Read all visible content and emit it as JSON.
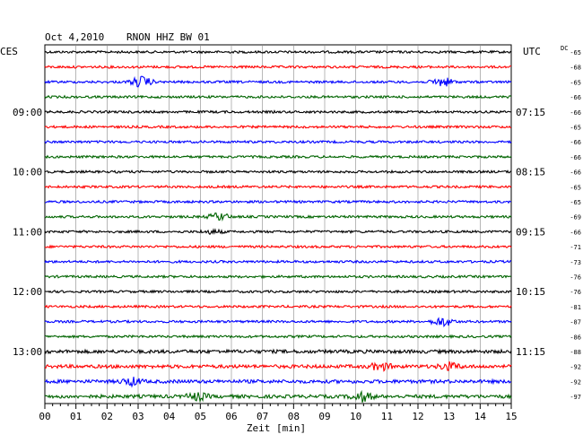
{
  "header": {
    "date": "Oct 4,2010",
    "station": "RNON HHZ BW 01",
    "left_tz": "CES",
    "right_tz": "UTC",
    "dc_label": "DC"
  },
  "chart_data": {
    "type": "line",
    "title": "Oct 4,2010   RNON HHZ BW 01",
    "xlabel": "Zeit [min]",
    "xlim": [
      0,
      15
    ],
    "x_ticks": [
      "00",
      "01",
      "02",
      "03",
      "04",
      "05",
      "06",
      "07",
      "08",
      "09",
      "10",
      "11",
      "12",
      "13",
      "14",
      "15"
    ],
    "grid": true,
    "trace_minutes_per_line": 15,
    "left_hour_labels": [
      {
        "row": 4,
        "label": "09:00"
      },
      {
        "row": 8,
        "label": "10:00"
      },
      {
        "row": 12,
        "label": "11:00"
      },
      {
        "row": 16,
        "label": "12:00"
      },
      {
        "row": 20,
        "label": "13:00"
      }
    ],
    "right_time_labels": [
      {
        "row": 4,
        "label": "07:15"
      },
      {
        "row": 8,
        "label": "08:15"
      },
      {
        "row": 12,
        "label": "09:15"
      },
      {
        "row": 16,
        "label": "10:15"
      },
      {
        "row": 20,
        "label": "11:15"
      }
    ],
    "trace_colors": [
      "#000000",
      "#ff0000",
      "#0000ff",
      "#006400"
    ],
    "dc_offsets": [
      -65,
      -68,
      -65,
      -66,
      -66,
      -65,
      -66,
      -66,
      -66,
      -65,
      -65,
      -69,
      -66,
      -71,
      -73,
      -76,
      -76,
      -81,
      -87,
      -86,
      -88,
      -92,
      -92,
      -97
    ],
    "events": [
      {
        "row": 2,
        "minute": 3.1,
        "amp": 6
      },
      {
        "row": 2,
        "minute": 12.8,
        "amp": 5
      },
      {
        "row": 11,
        "minute": 5.6,
        "amp": 4
      },
      {
        "row": 12,
        "minute": 5.4,
        "amp": 2
      },
      {
        "row": 18,
        "minute": 12.8,
        "amp": 5
      },
      {
        "row": 21,
        "minute": 10.8,
        "amp": 4
      },
      {
        "row": 21,
        "minute": 13.0,
        "amp": 4
      },
      {
        "row": 22,
        "minute": 2.8,
        "amp": 4
      },
      {
        "row": 23,
        "minute": 10.2,
        "amp": 5
      },
      {
        "row": 23,
        "minute": 4.9,
        "amp": 4
      }
    ]
  }
}
